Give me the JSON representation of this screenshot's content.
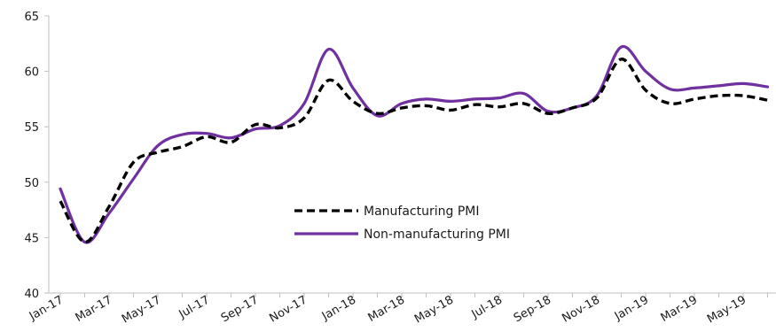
{
  "chart_data": {
    "type": "line",
    "ylim": [
      40,
      65
    ],
    "yticks": [
      40,
      45,
      50,
      55,
      60,
      65
    ],
    "x": [
      "Jan-17",
      "Feb-17",
      "Mar-17",
      "Apr-17",
      "May-17",
      "Jun-17",
      "Jul-17",
      "Aug-17",
      "Sep-17",
      "Oct-17",
      "Nov-17",
      "Dec-17",
      "Jan-18",
      "Feb-18",
      "Mar-18",
      "Apr-18",
      "May-18",
      "Jun-18",
      "Jul-18",
      "Aug-18",
      "Sep-18",
      "Oct-18",
      "Nov-18",
      "Dec-18",
      "Jan-19",
      "Feb-19",
      "Mar-19",
      "Apr-19",
      "May-19",
      "Jun-19"
    ],
    "xtick_labels": [
      "Jan-17",
      "Mar-17",
      "May-17",
      "Jul-17",
      "Sep-17",
      "Nov-17",
      "Jan-18",
      "Mar-18",
      "May-18",
      "Jul-18",
      "Sep-18",
      "Nov-18",
      "Jan-19",
      "Mar-19",
      "May-19"
    ],
    "grid": false,
    "legend_position": "center-right",
    "series": [
      {
        "name": "Manufacturing PMI",
        "color": "#000000",
        "style": "dashed",
        "values": [
          48.3,
          44.6,
          47.8,
          51.8,
          52.7,
          53.2,
          54.1,
          53.6,
          55.2,
          54.9,
          55.8,
          59.2,
          57.3,
          56.2,
          56.7,
          56.9,
          56.5,
          57.0,
          56.8,
          57.1,
          56.2,
          56.7,
          57.6,
          61.1,
          58.3,
          57.1,
          57.5,
          57.8,
          57.8,
          57.4
        ]
      },
      {
        "name": "Non-manufacturing PMI",
        "color": "#7030A0",
        "style": "solid",
        "values": [
          49.4,
          44.6,
          47.2,
          50.3,
          53.3,
          54.3,
          54.4,
          54.0,
          54.8,
          55.1,
          57.1,
          62.0,
          58.5,
          56.0,
          57.1,
          57.5,
          57.3,
          57.5,
          57.6,
          58.0,
          56.4,
          56.7,
          57.8,
          62.2,
          60.0,
          58.4,
          58.5,
          58.7,
          58.9,
          58.6
        ]
      }
    ]
  }
}
